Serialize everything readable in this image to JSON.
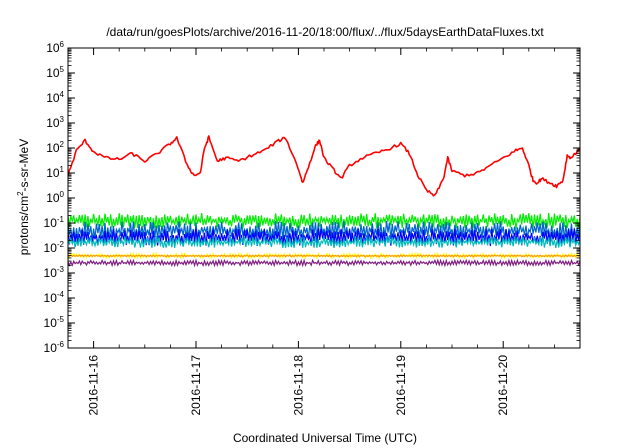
{
  "chart_data": {
    "type": "line",
    "title": "/data/run/goesPlots/archive/2016-11-20/18:00/flux/../flux/5daysEarthDataFluxes.txt",
    "xlabel": "Coordinated Universal Time (UTC)",
    "ylabel": {
      "base": "protons/cm",
      "exp": "2",
      "rest": "-s-sr-MeV"
    },
    "yscale": "log",
    "ylim": [
      1e-06,
      1000000.0
    ],
    "xlim": [
      "2016-11-15T18:00",
      "2016-11-20T18:00"
    ],
    "grid": false,
    "legend": "none",
    "x_ticks": [
      "2016-11-16",
      "2016-11-17",
      "2016-11-18",
      "2016-11-19",
      "2016-11-20"
    ],
    "y_ticks": [
      {
        "base": "10",
        "exp": "6"
      },
      {
        "base": "10",
        "exp": "5"
      },
      {
        "base": "10",
        "exp": "4"
      },
      {
        "base": "10",
        "exp": "3"
      },
      {
        "base": "10",
        "exp": "2"
      },
      {
        "base": "10",
        "exp": "1"
      },
      {
        "base": "10",
        "exp": "0"
      },
      {
        "base": "10",
        "exp": "-1"
      },
      {
        "base": "10",
        "exp": "-2"
      },
      {
        "base": "10",
        "exp": "-3"
      },
      {
        "base": "10",
        "exp": "-4"
      },
      {
        "base": "10",
        "exp": "-5"
      },
      {
        "base": "10",
        "exp": "-6"
      }
    ],
    "series": [
      {
        "color": "#ff0000",
        "noise": 0.06,
        "points": [
          [
            "2016-11-15T18:00",
            8
          ],
          [
            "2016-11-15T20:00",
            80
          ],
          [
            "2016-11-15T22:00",
            200
          ],
          [
            "2016-11-16T00:00",
            70
          ],
          [
            "2016-11-16T03:00",
            40
          ],
          [
            "2016-11-16T06:00",
            35
          ],
          [
            "2016-11-16T09:00",
            60
          ],
          [
            "2016-11-16T12:00",
            30
          ],
          [
            "2016-11-16T15:00",
            60
          ],
          [
            "2016-11-16T18:00",
            150
          ],
          [
            "2016-11-16T19:30",
            250
          ],
          [
            "2016-11-16T22:00",
            20
          ],
          [
            "2016-11-16T23:30",
            8
          ],
          [
            "2016-11-17T01:00",
            10
          ],
          [
            "2016-11-17T02:00",
            100
          ],
          [
            "2016-11-17T03:00",
            270
          ],
          [
            "2016-11-17T05:00",
            30
          ],
          [
            "2016-11-17T07:00",
            40
          ],
          [
            "2016-11-17T10:00",
            30
          ],
          [
            "2016-11-17T13:00",
            50
          ],
          [
            "2016-11-17T16:00",
            80
          ],
          [
            "2016-11-17T19:00",
            180
          ],
          [
            "2016-11-17T21:00",
            260
          ],
          [
            "2016-11-18T00:00",
            15
          ],
          [
            "2016-11-18T01:00",
            4
          ],
          [
            "2016-11-18T02:00",
            12
          ],
          [
            "2016-11-18T04:00",
            120
          ],
          [
            "2016-11-18T05:00",
            200
          ],
          [
            "2016-11-18T06:00",
            40
          ],
          [
            "2016-11-18T08:00",
            15
          ],
          [
            "2016-11-18T10:00",
            6
          ],
          [
            "2016-11-18T12:00",
            20
          ],
          [
            "2016-11-18T15:00",
            40
          ],
          [
            "2016-11-18T18:00",
            60
          ],
          [
            "2016-11-18T21:00",
            90
          ],
          [
            "2016-11-19T00:00",
            150
          ],
          [
            "2016-11-19T02:00",
            60
          ],
          [
            "2016-11-19T04:00",
            8
          ],
          [
            "2016-11-19T06:00",
            2
          ],
          [
            "2016-11-19T08:00",
            1.2
          ],
          [
            "2016-11-19T10:00",
            6
          ],
          [
            "2016-11-19T11:00",
            40
          ],
          [
            "2016-11-19T12:00",
            12
          ],
          [
            "2016-11-19T15:00",
            8
          ],
          [
            "2016-11-19T18:00",
            10
          ],
          [
            "2016-11-19T21:00",
            20
          ],
          [
            "2016-11-20T00:00",
            40
          ],
          [
            "2016-11-20T03:00",
            80
          ],
          [
            "2016-11-20T04:30",
            100
          ],
          [
            "2016-11-20T06:00",
            20
          ],
          [
            "2016-11-20T07:00",
            5
          ],
          [
            "2016-11-20T08:00",
            4
          ],
          [
            "2016-11-20T09:00",
            6
          ],
          [
            "2016-11-20T11:00",
            4
          ],
          [
            "2016-11-20T12:30",
            3
          ],
          [
            "2016-11-20T14:00",
            5
          ],
          [
            "2016-11-20T15:00",
            50
          ],
          [
            "2016-11-20T16:00",
            40
          ],
          [
            "2016-11-20T18:00",
            100
          ]
        ]
      },
      {
        "color": "#00ee00",
        "band": [
          0.06,
          0.25
        ]
      },
      {
        "color": "#0066cc",
        "band": [
          0.02,
          0.12
        ]
      },
      {
        "color": "#0000ff",
        "band": [
          0.012,
          0.06
        ]
      },
      {
        "color": "#00bbbb",
        "band": [
          0.01,
          0.03
        ]
      },
      {
        "color": "#ffff00",
        "band": [
          0.004,
          0.006
        ]
      },
      {
        "color": "#ff9900",
        "band": [
          0.0045,
          0.0052
        ]
      },
      {
        "color": "#7f1f7f",
        "band": [
          0.002,
          0.0032
        ]
      }
    ]
  }
}
